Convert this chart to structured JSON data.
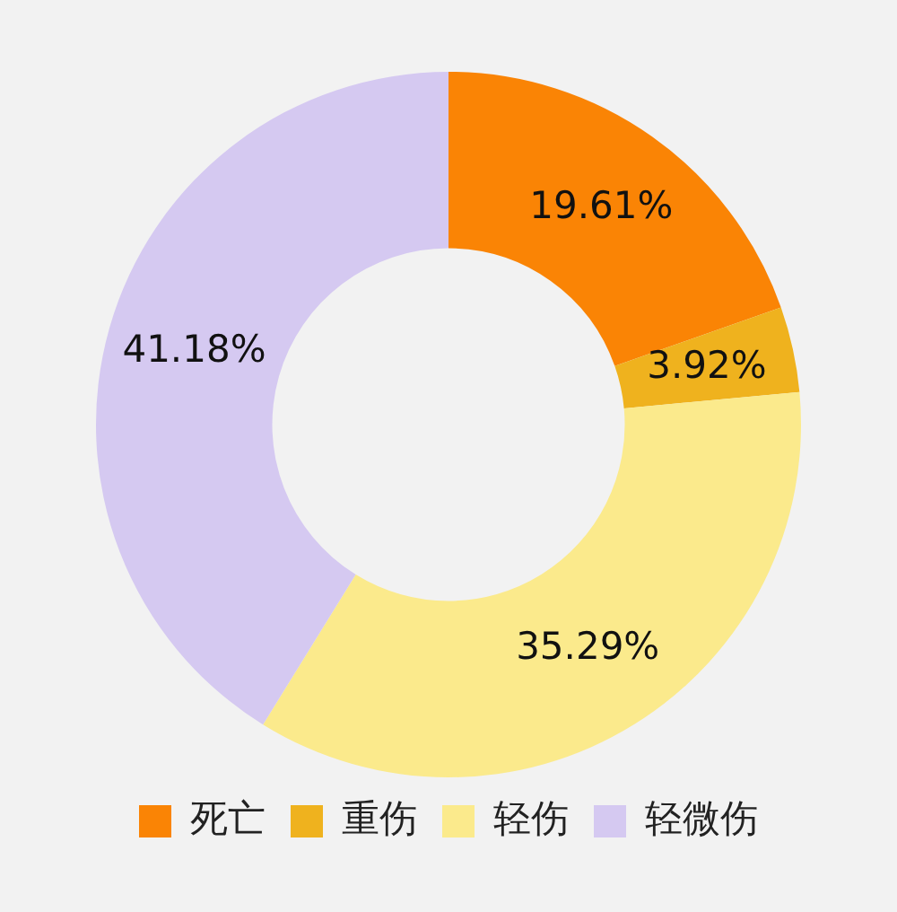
{
  "chart_data": {
    "type": "donut",
    "categories": [
      "死亡",
      "重伤",
      "轻伤",
      "轻微伤"
    ],
    "values": [
      19.61,
      3.92,
      35.29,
      41.18
    ],
    "value_labels": [
      "19.61%",
      "3.92%",
      "35.29%",
      "41.18%"
    ],
    "colors": [
      "#fa8405",
      "#efb21e",
      "#fbea8c",
      "#d5c9f1"
    ],
    "legend": "bottom"
  }
}
